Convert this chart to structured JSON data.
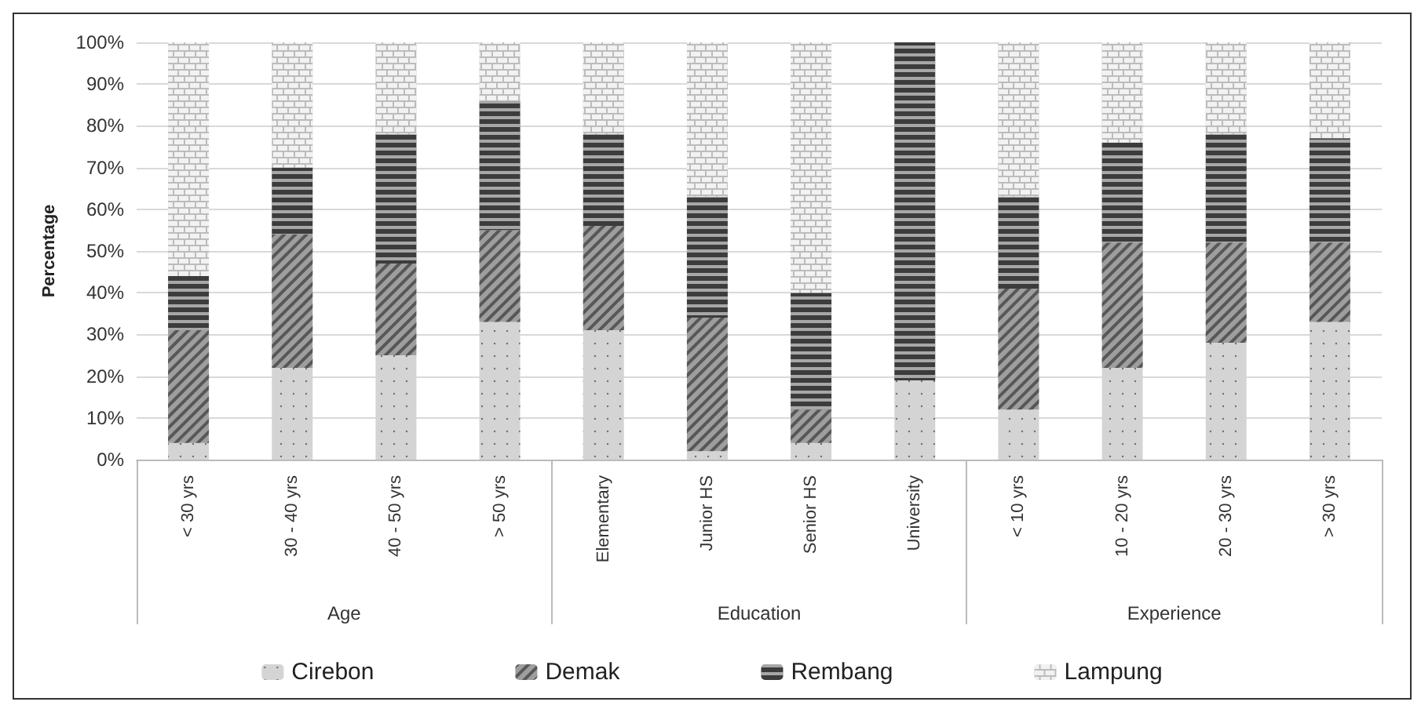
{
  "chart_data": {
    "type": "bar",
    "stacked": true,
    "ylabel": "Percentage",
    "categories": [
      "< 30 yrs",
      "30 - 40 yrs",
      "40 - 50 yrs",
      "> 50 yrs",
      "Elementary",
      "Junior HS",
      "Senior HS",
      "University",
      "< 10 yrs",
      "10 - 20 yrs",
      "20 - 30 yrs",
      "> 30 yrs"
    ],
    "annotations": [
      "Age",
      "Education",
      "Experience"
    ],
    "series": [
      {
        "name": "Cirebon",
        "color": "#d4d4d4",
        "values": [
          4,
          22,
          25,
          33,
          31,
          2,
          4,
          19,
          12,
          22,
          28,
          33
        ]
      },
      {
        "name": "Demak",
        "color": "#9e9e9e",
        "values": [
          27,
          32,
          22,
          22,
          25,
          32,
          8,
          0,
          29,
          30,
          24,
          19
        ]
      },
      {
        "name": "Rembang",
        "color": "#3c3c3c",
        "values": [
          13,
          16,
          31,
          31,
          22,
          29,
          28,
          81,
          22,
          24,
          26,
          25
        ]
      },
      {
        "name": "Lampung",
        "color": "#bcbcbc",
        "values": [
          56,
          30,
          22,
          14,
          22,
          37,
          60,
          0,
          37,
          24,
          22,
          23
        ]
      }
    ],
    "ylim": [
      0,
      100
    ],
    "yticks": [
      {
        "value": 0,
        "label": "0%"
      },
      {
        "value": 10,
        "label": "10%"
      },
      {
        "value": 20,
        "label": "20%"
      },
      {
        "value": 30,
        "label": "30%"
      },
      {
        "value": 40,
        "label": "40%"
      },
      {
        "value": 50,
        "label": "50%"
      },
      {
        "value": 60,
        "label": "60%"
      },
      {
        "value": 70,
        "label": "70%"
      },
      {
        "value": 80,
        "label": "80%"
      },
      {
        "value": 90,
        "label": "90%"
      },
      {
        "value": 100,
        "label": "100%"
      }
    ],
    "grid": "y",
    "legend": "bottom"
  }
}
